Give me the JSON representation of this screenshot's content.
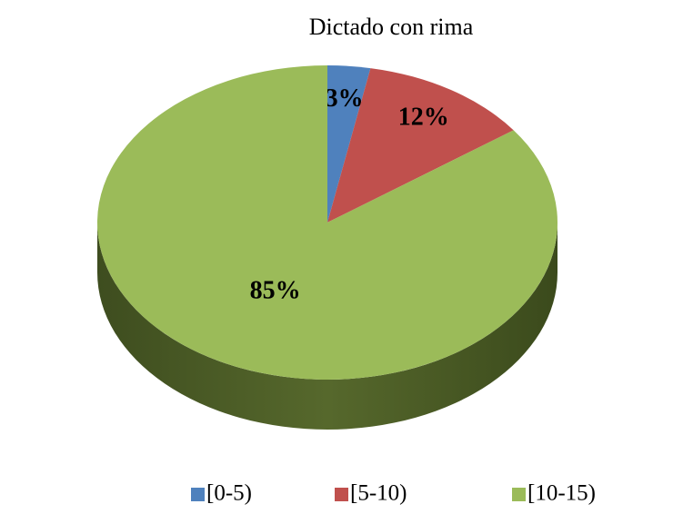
{
  "chart_data": {
    "type": "pie",
    "title": "Dictado con rima",
    "categories": [
      "[0-5)",
      "[5-10)",
      "[10-15)"
    ],
    "values": [
      3,
      12,
      85
    ],
    "value_labels": [
      "3%",
      "12%",
      "85%"
    ],
    "colors": [
      "#4f81bd",
      "#c0504d",
      "#9bbb59"
    ],
    "legend": "bottom"
  }
}
